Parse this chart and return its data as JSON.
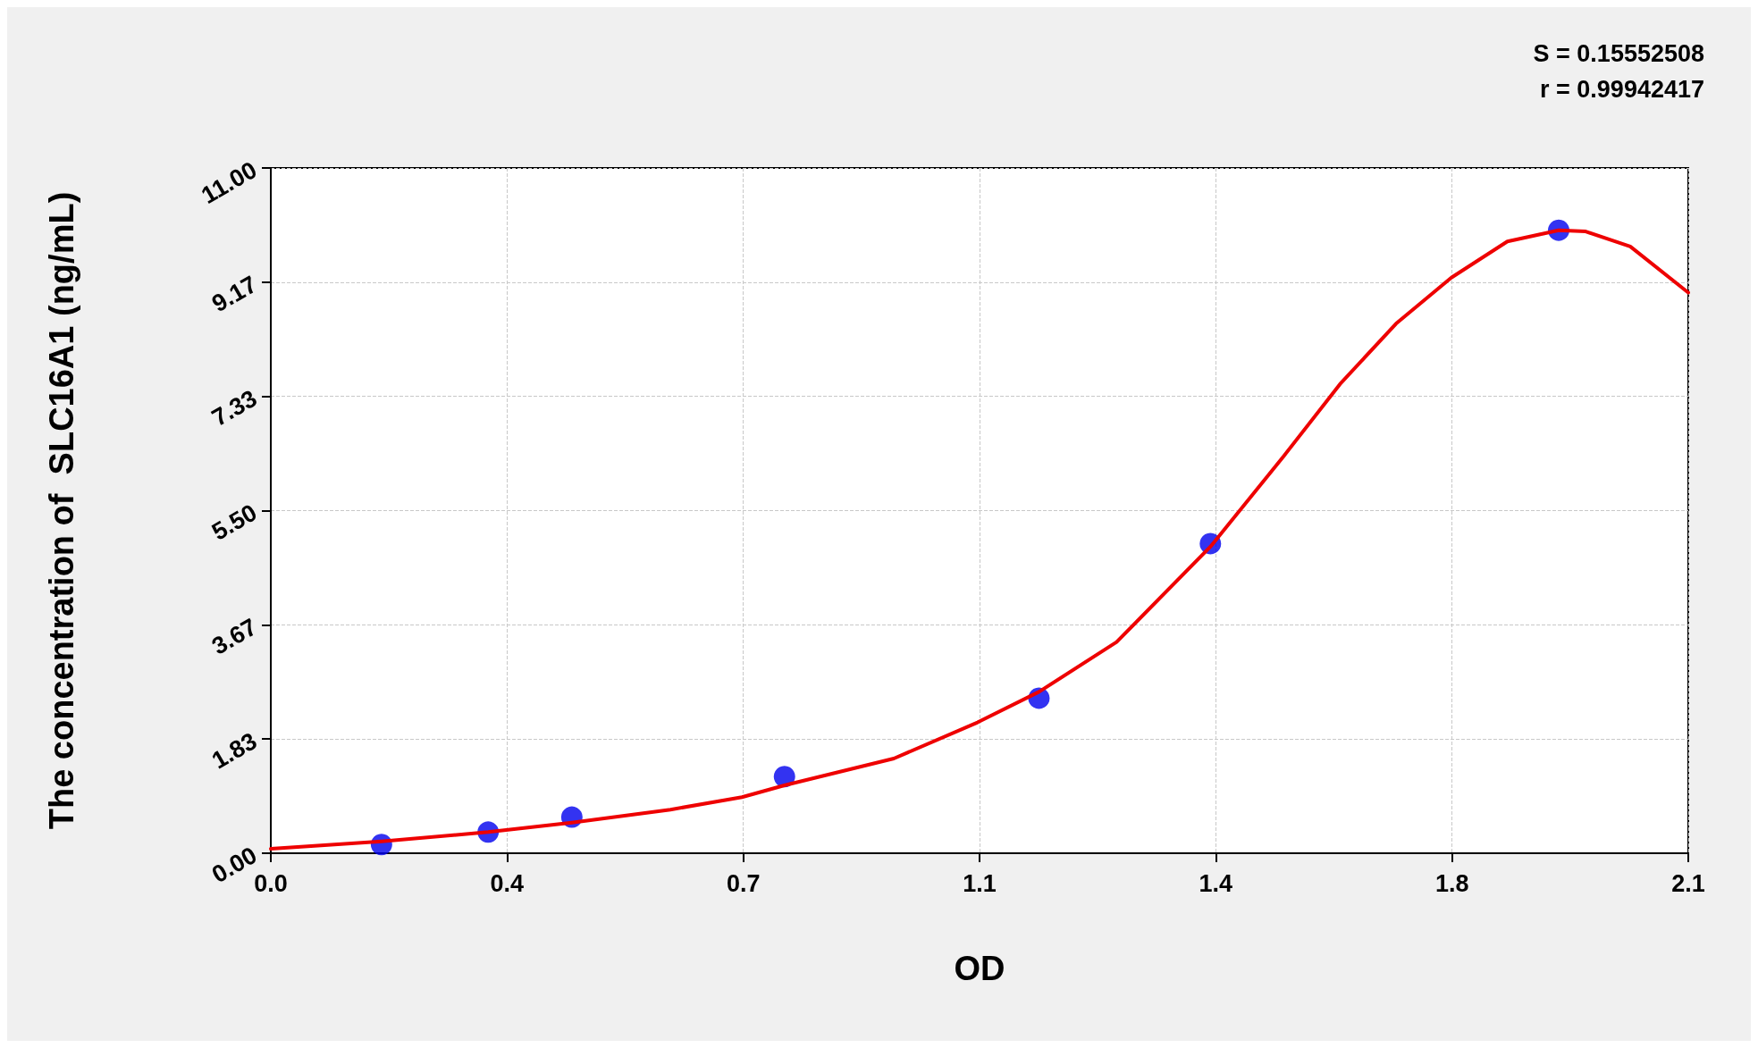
{
  "chart_data": {
    "type": "scatter",
    "xlabel": "OD",
    "ylabel": "The concentration of  SLC16A1 (ng/mL)",
    "annotations": [
      "S = 0.15552508",
      "r = 0.99942417"
    ],
    "xlim": [
      0,
      2.1
    ],
    "xticks": [
      {
        "value": 0,
        "label": "0.0"
      },
      {
        "value": 0.35,
        "label": "0.4"
      },
      0.7,
      {
        "value": 1.05,
        "label": "1.1"
      },
      1.4,
      {
        "value": 1.75,
        "label": "1.8"
      },
      2.1
    ],
    "ylim": [
      0,
      11
    ],
    "yticks": [
      {
        "value": 0,
        "label": "0.00"
      },
      {
        "value": 1.8333,
        "label": "1.83"
      },
      {
        "value": 3.6667,
        "label": "3.67"
      },
      {
        "value": 5.5,
        "label": "5.50"
      },
      {
        "value": 7.3333,
        "label": "7.33"
      },
      {
        "value": 9.1667,
        "label": "9.17"
      },
      {
        "value": 11,
        "label": "11.00"
      }
    ],
    "grid": true,
    "series": [
      {
        "type": "scatter",
        "color": "#0000ee",
        "marker": "circle",
        "x": [
          0.164,
          0.322,
          0.446,
          0.761,
          1.138,
          1.392,
          1.908
        ],
        "values": [
          0.14,
          0.34,
          0.58,
          1.23,
          2.49,
          4.97,
          10.0
        ]
      },
      {
        "type": "line",
        "color": "#ee0000",
        "marker": "none",
        "line_style": "solid",
        "x": [
          0,
          0.164,
          0.322,
          0.446,
          0.592,
          0.698,
          0.761,
          0.923,
          1.047,
          1.138,
          1.253,
          1.392,
          1.501,
          1.584,
          1.667,
          1.749,
          1.832,
          1.908,
          1.948,
          2.014,
          2.1
        ],
        "values": [
          0.07,
          0.19,
          0.34,
          0.49,
          0.7,
          0.9,
          1.09,
          1.52,
          2.1,
          2.59,
          3.39,
          4.92,
          6.38,
          7.53,
          8.5,
          9.24,
          9.82,
          10.0,
          9.98,
          9.74,
          9.0
        ]
      }
    ]
  }
}
